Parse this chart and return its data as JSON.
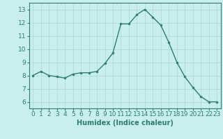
{
  "x": [
    0,
    1,
    2,
    3,
    4,
    5,
    6,
    7,
    8,
    9,
    10,
    11,
    12,
    13,
    14,
    15,
    16,
    17,
    18,
    19,
    20,
    21,
    22,
    23
  ],
  "y": [
    8.0,
    8.3,
    8.0,
    7.9,
    7.8,
    8.1,
    8.2,
    8.2,
    8.3,
    8.9,
    9.7,
    11.9,
    11.9,
    12.6,
    13.0,
    12.4,
    11.8,
    10.5,
    9.0,
    7.9,
    7.1,
    6.4,
    6.0,
    6.0
  ],
  "line_color": "#2e7d6e",
  "marker": "o",
  "markersize": 2.0,
  "linewidth": 1.0,
  "bg_color": "#c8eeee",
  "grid_color": "#a8d8d8",
  "xlabel": "Humidex (Indice chaleur)",
  "xlim": [
    -0.5,
    23.5
  ],
  "ylim": [
    5.5,
    13.5
  ],
  "yticks": [
    6,
    7,
    8,
    9,
    10,
    11,
    12,
    13
  ],
  "xticks": [
    0,
    1,
    2,
    3,
    4,
    5,
    6,
    7,
    8,
    9,
    10,
    11,
    12,
    13,
    14,
    15,
    16,
    17,
    18,
    19,
    20,
    21,
    22,
    23
  ],
  "xlabel_fontsize": 7,
  "tick_fontsize": 6.5,
  "axis_color": "#2e7d6e",
  "spine_color": "#2e7d6e"
}
